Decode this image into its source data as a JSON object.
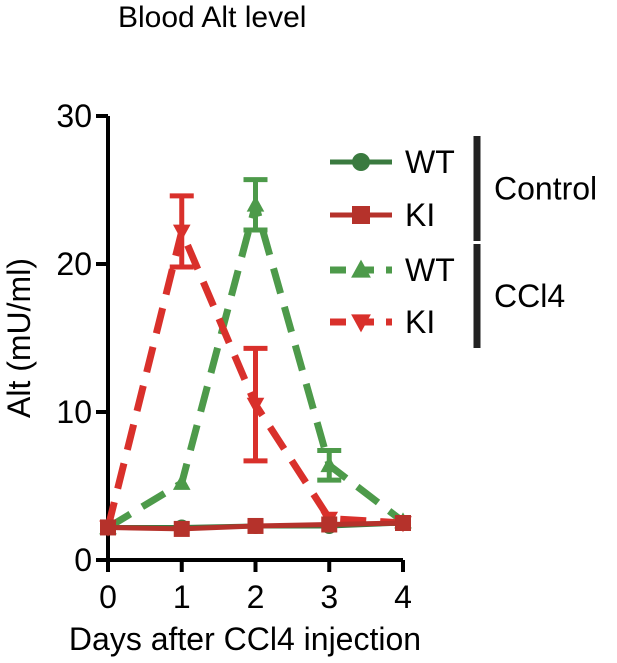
{
  "chart_data": {
    "type": "line",
    "title": "Blood Alt level",
    "xlabel": "Days after CCl4 injection",
    "ylabel": "Alt (mU/ml)",
    "x": [
      0,
      1,
      2,
      3,
      4
    ],
    "xlim": [
      0,
      4
    ],
    "ylim": [
      0,
      30
    ],
    "x_ticks": [
      "0",
      "1",
      "2",
      "3",
      "4"
    ],
    "y_ticks": [
      "0",
      "10",
      "20",
      "30"
    ],
    "grid": false,
    "legend_position": "top-right",
    "series": [
      {
        "name": "WT",
        "group": "Control",
        "color": "#3a7a3f",
        "marker": "circle",
        "dashed": false,
        "values": [
          2.2,
          2.2,
          2.3,
          2.3,
          2.5
        ],
        "errors": [
          0,
          0,
          0,
          0,
          0
        ]
      },
      {
        "name": "KI",
        "group": "Control",
        "color": "#b5322b",
        "marker": "square",
        "dashed": false,
        "values": [
          2.2,
          2.1,
          2.3,
          2.4,
          2.5
        ],
        "errors": [
          0,
          0,
          0,
          0,
          0
        ]
      },
      {
        "name": "WT",
        "group": "CCl4",
        "color": "#4d9a4a",
        "marker": "triangle-up",
        "dashed": true,
        "values": [
          2.2,
          5.2,
          24,
          6.4,
          2.6
        ],
        "errors": [
          0,
          0,
          1.7,
          1.0,
          0
        ]
      },
      {
        "name": "KI",
        "group": "CCl4",
        "color": "#d9302b",
        "marker": "triangle-down",
        "dashed": true,
        "values": [
          2.2,
          22.2,
          10.5,
          2.8,
          2.5
        ],
        "errors": [
          0,
          2.4,
          3.8,
          0,
          0
        ]
      }
    ]
  }
}
